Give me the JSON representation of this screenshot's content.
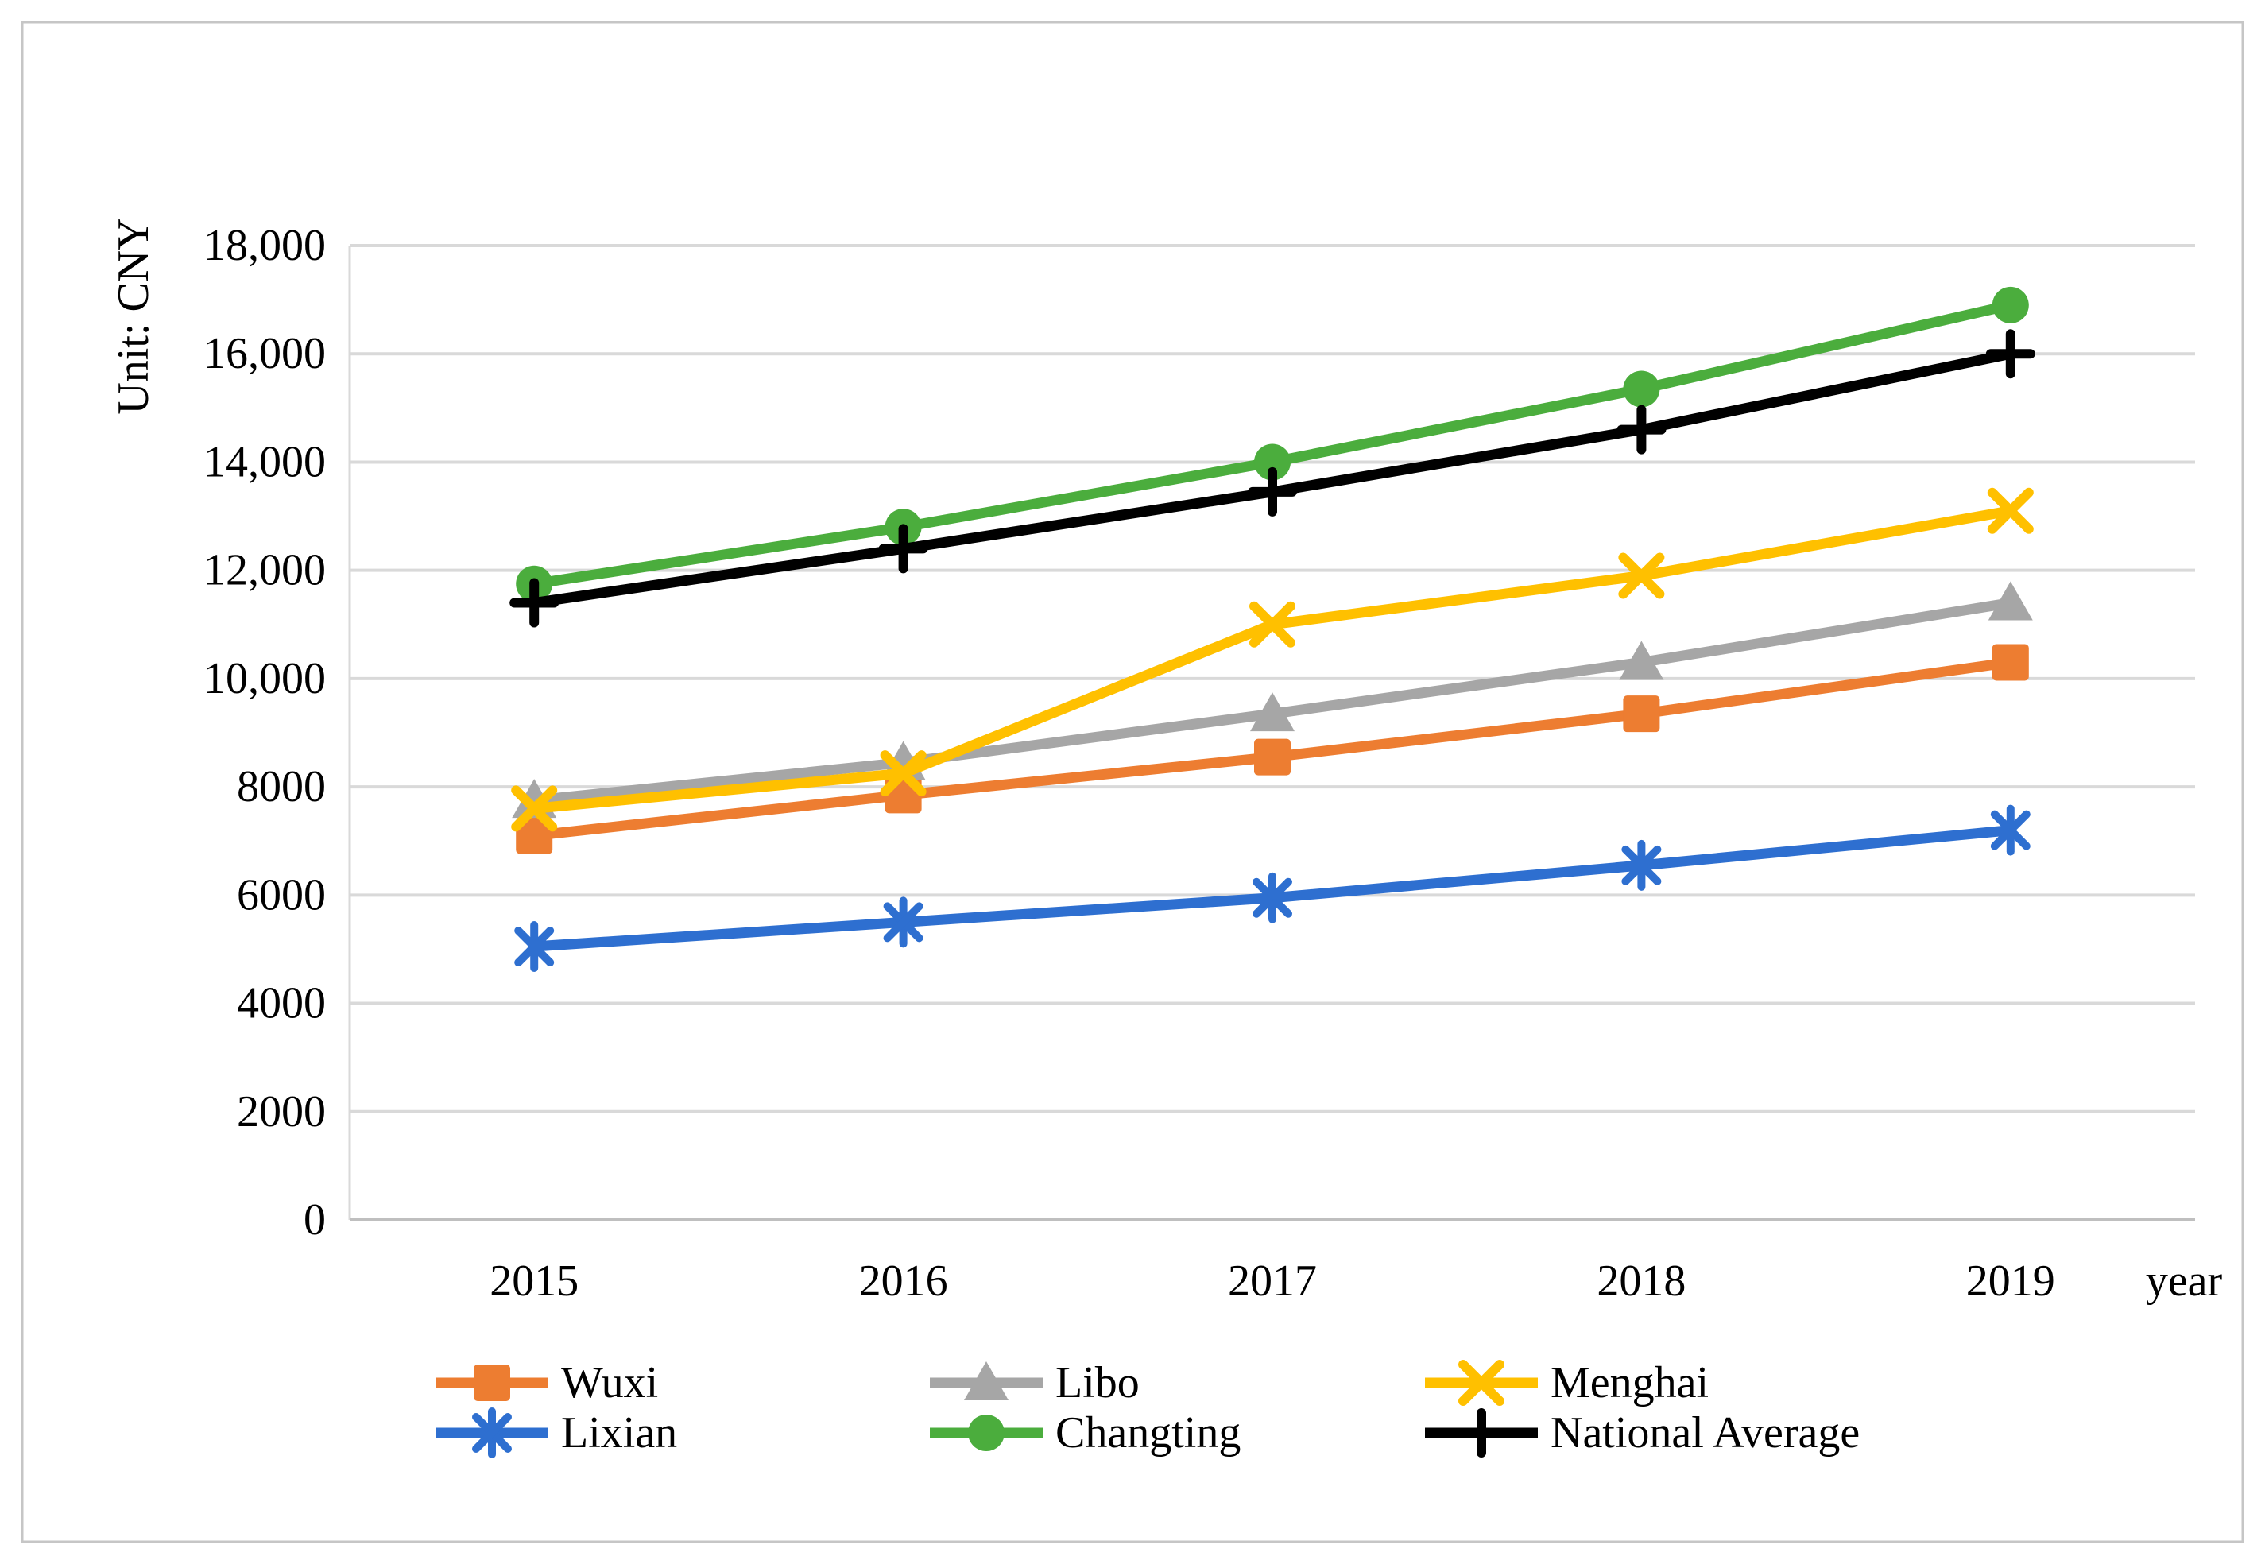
{
  "page": {
    "background": "#FFFFFF",
    "border_color": "#C6C6C6"
  },
  "chart_data": {
    "type": "line",
    "title": "",
    "unit_label": "Unit: CNY",
    "x_axis_label": "year",
    "categories": [
      "2015",
      "2016",
      "2017",
      "2018",
      "2019"
    ],
    "ylim": [
      0,
      18000
    ],
    "y_tick_interval": 2000,
    "grid": true,
    "legend_position": "bottom",
    "axes": {
      "grid_color": "#D9D9D9",
      "axis_color": "#BFBFBF",
      "text_color": "#000000"
    },
    "y_ticks": [
      {
        "value": 18000,
        "label": "18,000"
      },
      {
        "value": 16000,
        "label": "16,000"
      },
      {
        "value": 14000,
        "label": "14,000"
      },
      {
        "value": 12000,
        "label": "12,000"
      },
      {
        "value": 10000,
        "label": "10,000"
      },
      {
        "value": 8000,
        "label": "8000"
      },
      {
        "value": 6000,
        "label": "6000"
      },
      {
        "value": 4000,
        "label": "4000"
      },
      {
        "value": 2000,
        "label": "2000"
      },
      {
        "value": 0,
        "label": "0"
      }
    ],
    "series": [
      {
        "name": "Wuxi",
        "color": "#ED7D31",
        "marker": "square",
        "values": [
          7100,
          7850,
          8550,
          9350,
          10300
        ]
      },
      {
        "name": "Libo",
        "color": "#A6A6A6",
        "marker": "triangle",
        "values": [
          7750,
          8450,
          9350,
          10300,
          11400
        ]
      },
      {
        "name": "Menghai",
        "color": "#FFC000",
        "marker": "x",
        "values": [
          7600,
          8250,
          11000,
          11900,
          13100
        ]
      },
      {
        "name": "Lixian",
        "color": "#2E6FD0",
        "marker": "asterisk",
        "values": [
          5050,
          5500,
          5950,
          6550,
          7200
        ]
      },
      {
        "name": "Changting",
        "color": "#4BAD3D",
        "marker": "circle",
        "values": [
          11750,
          12800,
          14000,
          15350,
          16900
        ]
      },
      {
        "name": "National Average",
        "color": "#000000",
        "marker": "plus",
        "values": [
          11400,
          12400,
          13450,
          14600,
          16000
        ]
      }
    ]
  }
}
